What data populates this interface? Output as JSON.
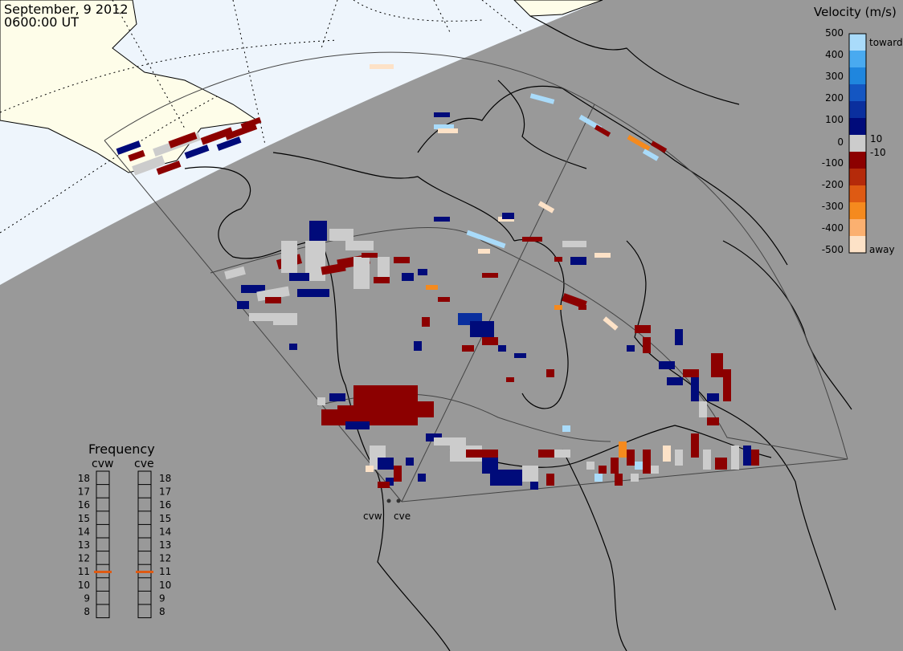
{
  "header": {
    "date": "September, 9 2012",
    "time": "0600:00 UT"
  },
  "velocity_scale": {
    "title": "Velocity (m/s)",
    "ticks": [
      "500",
      "400",
      "300",
      "200",
      "100",
      "10",
      "0",
      "-10",
      "-100",
      "-200",
      "-300",
      "-400",
      "-500"
    ],
    "toward_label": "toward",
    "away_label": "away",
    "colors": [
      "#fde2c7",
      "#fbb070",
      "#f58a1e",
      "#de5a13",
      "#b52a0a",
      "#8c0000",
      "#cccccc",
      "#000b7a",
      "#0a2f9e",
      "#1456c2",
      "#1f86de",
      "#49aaf0",
      "#a9dbfa"
    ]
  },
  "frequency": {
    "title": "Frequency",
    "radars": [
      {
        "name": "cvw",
        "selected_mhz": 11
      },
      {
        "name": "cve",
        "selected_mhz": 11
      }
    ],
    "ticks": [
      "18",
      "17",
      "16",
      "15",
      "14",
      "13",
      "12",
      "11",
      "10",
      "9",
      "8"
    ]
  },
  "radar_sites": [
    {
      "name": "cvw"
    },
    {
      "name": "cve"
    }
  ],
  "colors": {
    "background": "#999999",
    "daylight": "#fefde9",
    "twilight": "#eef5fc",
    "toward": "#a9dbfa",
    "away": "#fde2c7",
    "ground_scatter": "#cccccc",
    "frequency_marker": "#de5a13"
  }
}
